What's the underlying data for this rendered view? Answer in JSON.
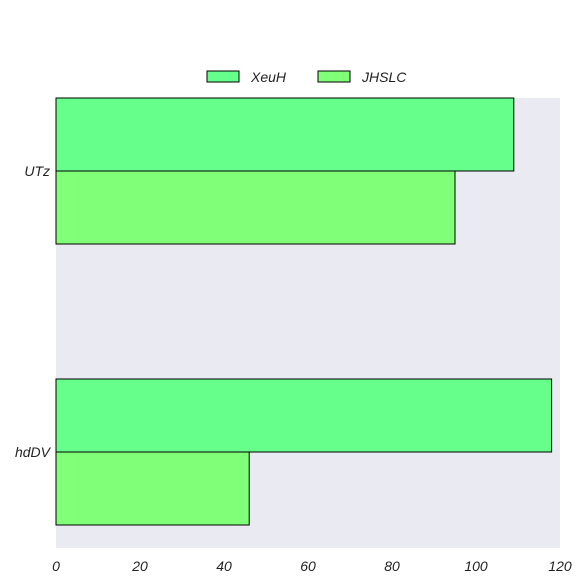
{
  "chart_data": {
    "type": "bar",
    "orientation": "horizontal",
    "categories": [
      "UTz",
      "hdDV"
    ],
    "series": [
      {
        "name": "XeuH",
        "values": [
          109,
          118
        ],
        "color": "#66ff8c"
      },
      {
        "name": "JHSLC",
        "values": [
          95,
          46
        ],
        "color": "#80ff78"
      }
    ],
    "xlim": [
      0,
      120
    ],
    "x_ticks": [
      0,
      20,
      40,
      60,
      80,
      100,
      120
    ],
    "title": "",
    "xlabel": "",
    "ylabel": "",
    "grid": false,
    "legend_position": "top-center",
    "plot_background": "#eaeaf2"
  }
}
